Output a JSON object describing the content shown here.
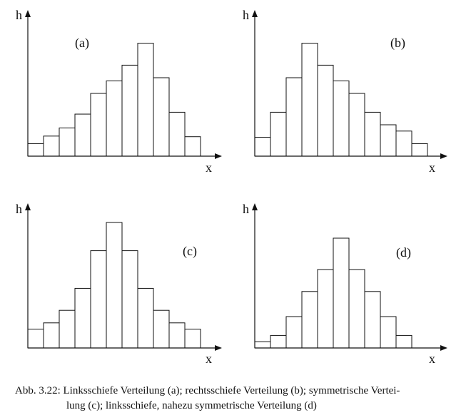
{
  "chart_data": [
    {
      "type": "bar",
      "panel_label": "(a)",
      "ylabel": "h",
      "xlabel": "x",
      "values": [
        2,
        3.2,
        4.5,
        6.7,
        10,
        12,
        14.5,
        18,
        12.5,
        7,
        3.1
      ]
    },
    {
      "type": "bar",
      "panel_label": "(b)",
      "ylabel": "h",
      "xlabel": "x",
      "values": [
        3,
        7,
        12.5,
        18,
        14.5,
        12,
        10,
        7,
        5,
        4,
        2
      ]
    },
    {
      "type": "bar",
      "panel_label": "(c)",
      "ylabel": "h",
      "xlabel": "x",
      "values": [
        3,
        4,
        6,
        9.5,
        15.5,
        20,
        15.5,
        9.5,
        6,
        4,
        3
      ]
    },
    {
      "type": "bar",
      "panel_label": "(d)",
      "ylabel": "h",
      "xlabel": "x",
      "values": [
        1,
        2,
        5,
        9,
        12.5,
        17.5,
        12.5,
        9,
        5,
        2
      ]
    }
  ],
  "caption": {
    "line1": "Abb. 3.22: Linksschiefe Verteilung (a);  rechtsschiefe Verteilung (b); symmetrische Vertei-",
    "line2": "lung (c); linksschiefe, nahezu symmetrische Verteilung (d)"
  }
}
